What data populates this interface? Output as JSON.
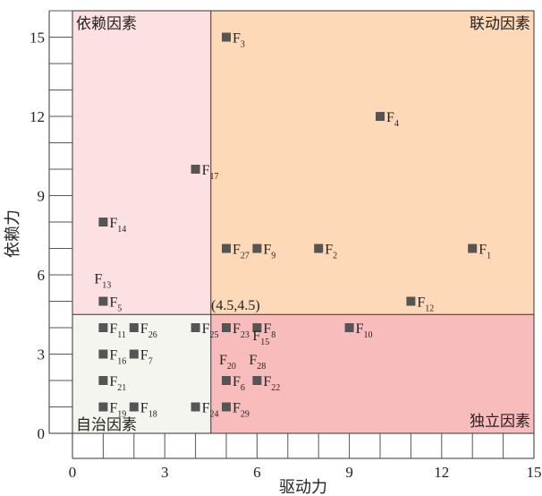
{
  "chart_data": {
    "type": "scatter",
    "xlabel": "驱动力",
    "ylabel": "依赖力",
    "xlim": [
      0,
      15
    ],
    "ylim": [
      0,
      16
    ],
    "xticks": [
      0,
      3,
      6,
      9,
      12,
      15
    ],
    "yticks": [
      0,
      3,
      6,
      9,
      12,
      15
    ],
    "grid": false,
    "divider": {
      "x": 4.5,
      "y": 4.5
    },
    "annotation": "(4.5,4.5)",
    "quadrants": [
      {
        "name": "依赖因素",
        "corner": "top-left",
        "color": "#fde0e1"
      },
      {
        "name": "联动因素",
        "corner": "top-right",
        "color": "#fdd9b8"
      },
      {
        "name": "自治因素",
        "corner": "bottom-left",
        "color": "#f3f5ee"
      },
      {
        "name": "独立因素",
        "corner": "bottom-right",
        "color": "#f8bcbc"
      }
    ],
    "marker_color": "#555555",
    "points": [
      {
        "label": "F",
        "sub": "1",
        "x": 13,
        "y": 7
      },
      {
        "label": "F",
        "sub": "2",
        "x": 8,
        "y": 7
      },
      {
        "label": "F",
        "sub": "3",
        "x": 5,
        "y": 15
      },
      {
        "label": "F",
        "sub": "4",
        "x": 10,
        "y": 12
      },
      {
        "label": "F",
        "sub": "5",
        "x": 1,
        "y": 5
      },
      {
        "label": "F",
        "sub": "6",
        "x": 5,
        "y": 2
      },
      {
        "label": "F",
        "sub": "7",
        "x": 2,
        "y": 3
      },
      {
        "label": "F",
        "sub": "8",
        "x": 6,
        "y": 4
      },
      {
        "label": "F",
        "sub": "9",
        "x": 6,
        "y": 7
      },
      {
        "label": "F",
        "sub": "10",
        "x": 9,
        "y": 4
      },
      {
        "label": "F",
        "sub": "11",
        "x": 1,
        "y": 4
      },
      {
        "label": "F",
        "sub": "12",
        "x": 11,
        "y": 5
      },
      {
        "label": "F",
        "sub": "13",
        "x": 1,
        "y": 5
      },
      {
        "label": "F",
        "sub": "14",
        "x": 1,
        "y": 8
      },
      {
        "label": "F",
        "sub": "15",
        "x": 6,
        "y": 4
      },
      {
        "label": "F",
        "sub": "16",
        "x": 1,
        "y": 3
      },
      {
        "label": "F",
        "sub": "17",
        "x": 4,
        "y": 10
      },
      {
        "label": "F",
        "sub": "18",
        "x": 2,
        "y": 1
      },
      {
        "label": "F",
        "sub": "19",
        "x": 1,
        "y": 1
      },
      {
        "label": "F",
        "sub": "20",
        "x": 5,
        "y": 2
      },
      {
        "label": "F",
        "sub": "21",
        "x": 1,
        "y": 2
      },
      {
        "label": "F",
        "sub": "22",
        "x": 6,
        "y": 2
      },
      {
        "label": "F",
        "sub": "23",
        "x": 5,
        "y": 4
      },
      {
        "label": "F",
        "sub": "24",
        "x": 4,
        "y": 1
      },
      {
        "label": "F",
        "sub": "25",
        "x": 4,
        "y": 4
      },
      {
        "label": "F",
        "sub": "26",
        "x": 2,
        "y": 4
      },
      {
        "label": "F",
        "sub": "27",
        "x": 5,
        "y": 7
      },
      {
        "label": "F",
        "sub": "28",
        "x": 6,
        "y": 2
      },
      {
        "label": "F",
        "sub": "29",
        "x": 5,
        "y": 1
      }
    ]
  }
}
